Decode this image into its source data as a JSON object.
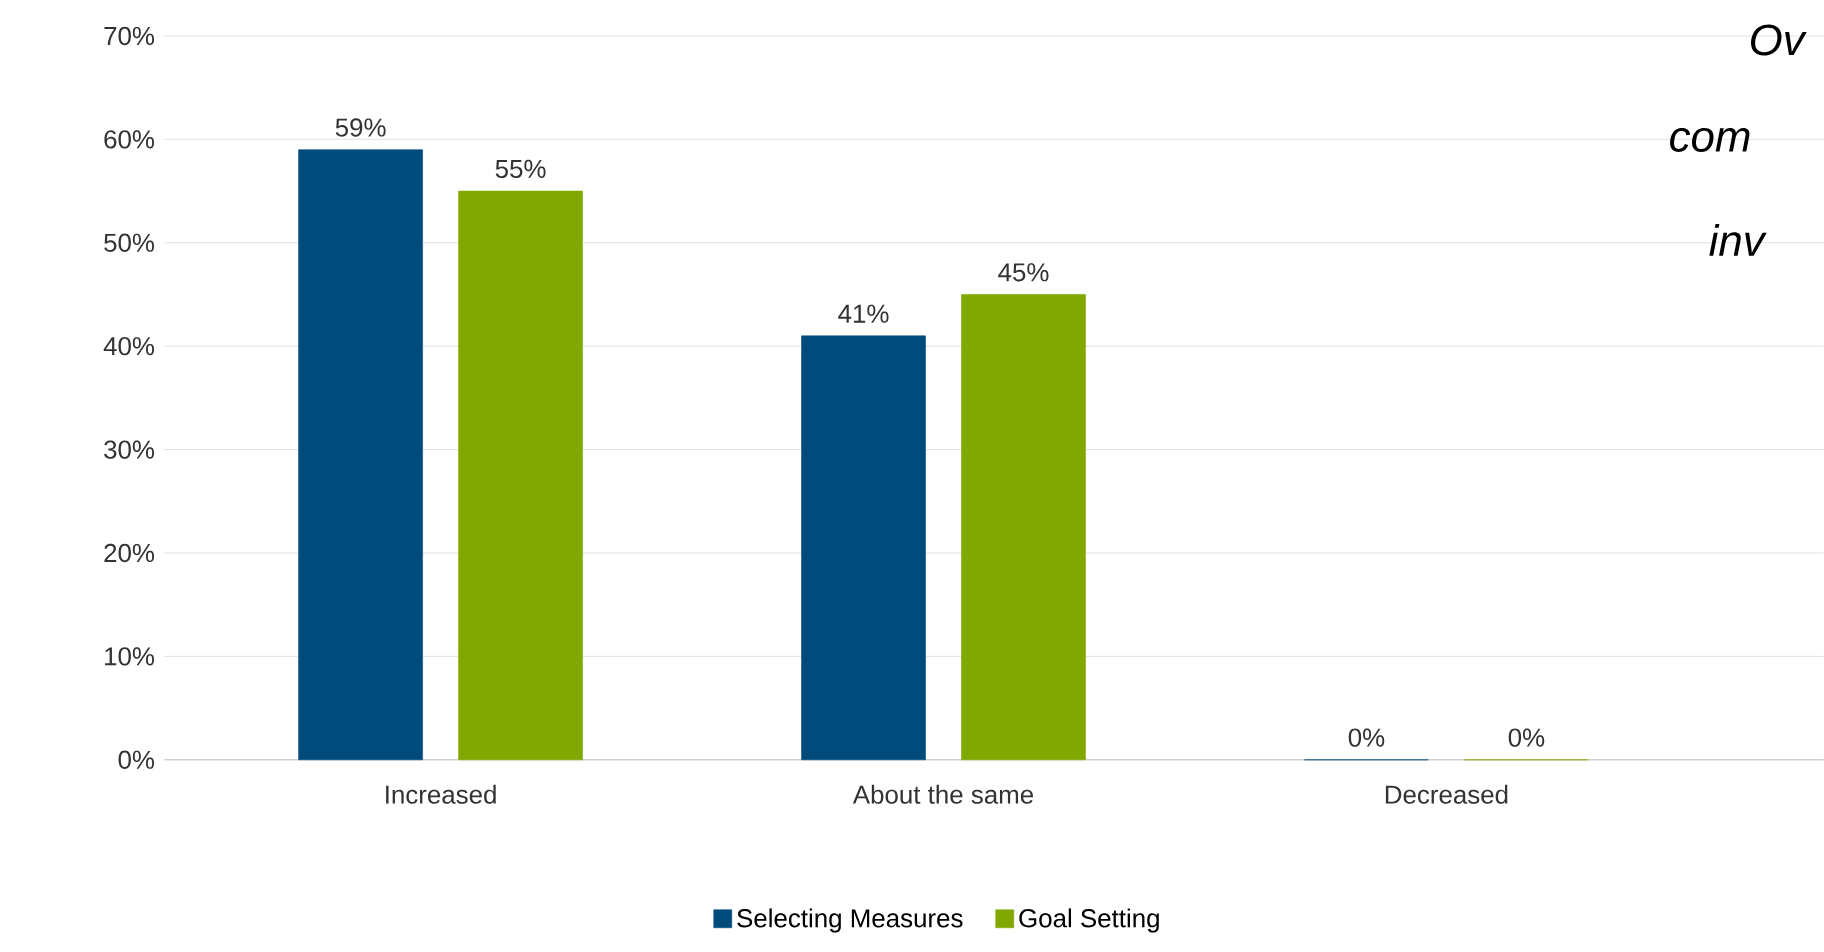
{
  "chart_data": {
    "type": "bar",
    "categories": [
      "Increased",
      "About the same",
      "Decreased"
    ],
    "series": [
      {
        "name": "Selecting Measures",
        "color": "#004b7c",
        "values": [
          59,
          41,
          0
        ],
        "value_labels": [
          "59%",
          "41%",
          "0%"
        ]
      },
      {
        "name": "Goal Setting",
        "color": "#80a800",
        "values": [
          55,
          45,
          0
        ],
        "value_labels": [
          "55%",
          "45%",
          "0%"
        ]
      }
    ],
    "ylim": [
      0,
      70
    ],
    "yticks": [
      {
        "value": 0,
        "label": "0%"
      },
      {
        "value": 10,
        "label": "10%"
      },
      {
        "value": 20,
        "label": "20%"
      },
      {
        "value": 30,
        "label": "30%"
      },
      {
        "value": 40,
        "label": "40%"
      },
      {
        "value": 50,
        "label": "50%"
      },
      {
        "value": 60,
        "label": "60%"
      },
      {
        "value": 70,
        "label": "70%"
      }
    ],
    "grid": "y",
    "legend": "bottom",
    "annotations": [
      "Ov",
      "com",
      "inv"
    ]
  }
}
